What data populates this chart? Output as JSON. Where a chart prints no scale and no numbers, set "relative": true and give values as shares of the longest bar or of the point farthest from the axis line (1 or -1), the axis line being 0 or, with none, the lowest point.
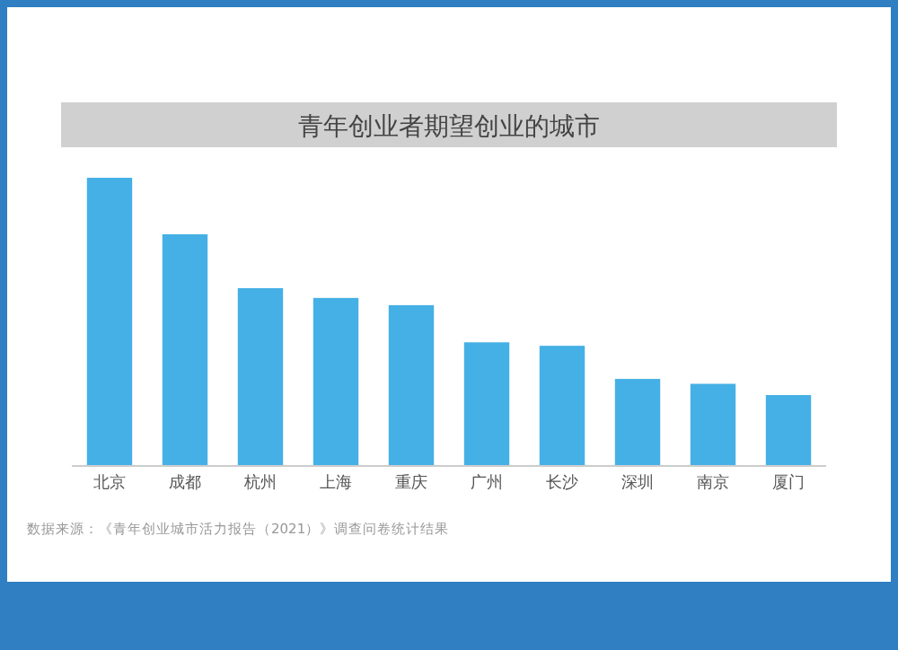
{
  "chart_data": {
    "type": "bar",
    "title": "青年创业者期望创业的城市",
    "relative": true,
    "categories": [
      "北京",
      "成都",
      "杭州",
      "上海",
      "重庆",
      "广州",
      "长沙",
      "深圳",
      "南京",
      "厦门"
    ],
    "values": [
      1,
      0.804,
      0.617,
      0.583,
      0.558,
      0.429,
      0.417,
      0.302,
      0.285,
      0.246
    ],
    "color": "#45b0e5",
    "annotations": [
      "数据来源：《青年创业城市活力报告（2021）》调查问卷统计结果"
    ]
  }
}
